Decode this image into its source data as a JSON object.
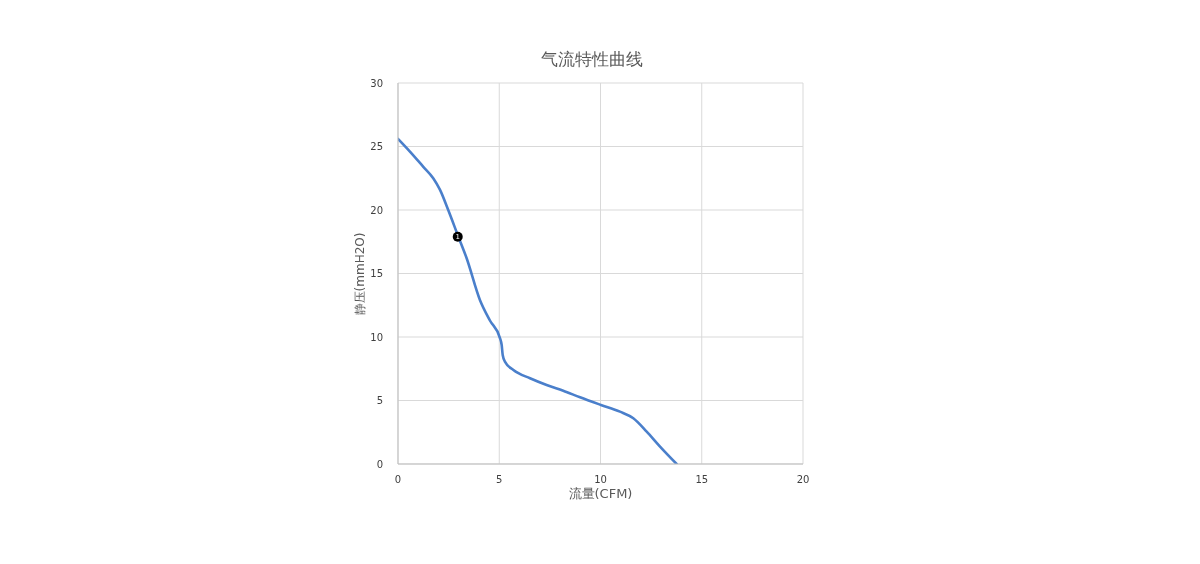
{
  "chart_data": {
    "type": "line",
    "title": "气流特性曲线",
    "xlabel": "流量(CFM)",
    "ylabel": "静压(mmH2O)",
    "xlim": [
      0,
      20
    ],
    "xticks": [
      0,
      5,
      10,
      15,
      20
    ],
    "ylim": [
      0,
      30
    ],
    "yticks": [
      0,
      5,
      10,
      15,
      20,
      25,
      30
    ],
    "grid": true,
    "marker": "none",
    "line_style": "solid",
    "series": [
      {
        "color": "#4a7fcb",
        "x": [
          0,
          0.59,
          1.25,
          1.74,
          2.07,
          2.48,
          2.98,
          3.39,
          4.05,
          4.54,
          5.04,
          5.12,
          5.17,
          5.28,
          5.7,
          6.52,
          7.34,
          8.16,
          8.99,
          10.02,
          10.96,
          11.62,
          12.28,
          12.94,
          13.76
        ],
        "values": [
          25.6,
          24.6,
          23.4,
          22.5,
          21.6,
          20.0,
          17.9,
          16.2,
          12.9,
          11.3,
          9.9,
          9.37,
          8.58,
          8.06,
          7.4,
          6.75,
          6.22,
          5.77,
          5.25,
          4.65,
          4.12,
          3.6,
          2.55,
          1.37,
          0
        ]
      },
      {
        "type": "scatter",
        "color": "#000000",
        "marker": "circle",
        "x": [
          2.95
        ],
        "values": [
          17.9
        ]
      }
    ],
    "annotations": [
      {
        "text": "1",
        "x": 2.95,
        "y": 17.9
      }
    ]
  }
}
